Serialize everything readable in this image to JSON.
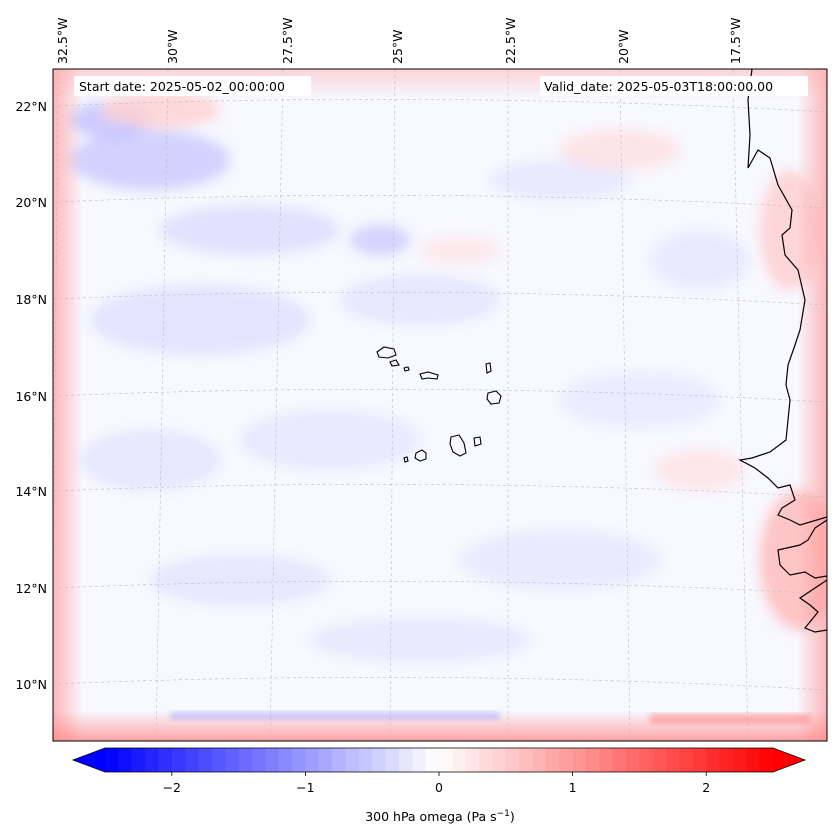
{
  "header": {
    "start_date": "Start date: 2025-05-02_00:00:00",
    "valid_date": "Valid_date: 2025-05-03T18:00:00.00"
  },
  "map": {
    "projection": "lambert-conformal",
    "variable": "300 hPa omega",
    "lon_labels": [
      "32.5°W",
      "30°W",
      "27.5°W",
      "25°W",
      "22.5°W",
      "20°W",
      "17.5°W"
    ],
    "lat_labels": [
      "22°N",
      "20°N",
      "18°N",
      "16°N",
      "14°N",
      "12°N",
      "10°N"
    ],
    "gridlines": true,
    "coastline_color": "#000000"
  },
  "colorbar": {
    "label_main": "300 hPa omega (Pa s",
    "label_exp": "−1",
    "label_close": ")",
    "ticks": [
      "−2",
      "−1",
      "0",
      "1",
      "2"
    ],
    "tick_values": [
      -2,
      -1,
      0,
      1,
      2
    ],
    "vmin": -2.5,
    "vmax": 2.5,
    "colormap": "bwr",
    "color_low": "#0000ff",
    "color_mid": "#ffffff",
    "color_high": "#ff0000",
    "extend": "both"
  }
}
